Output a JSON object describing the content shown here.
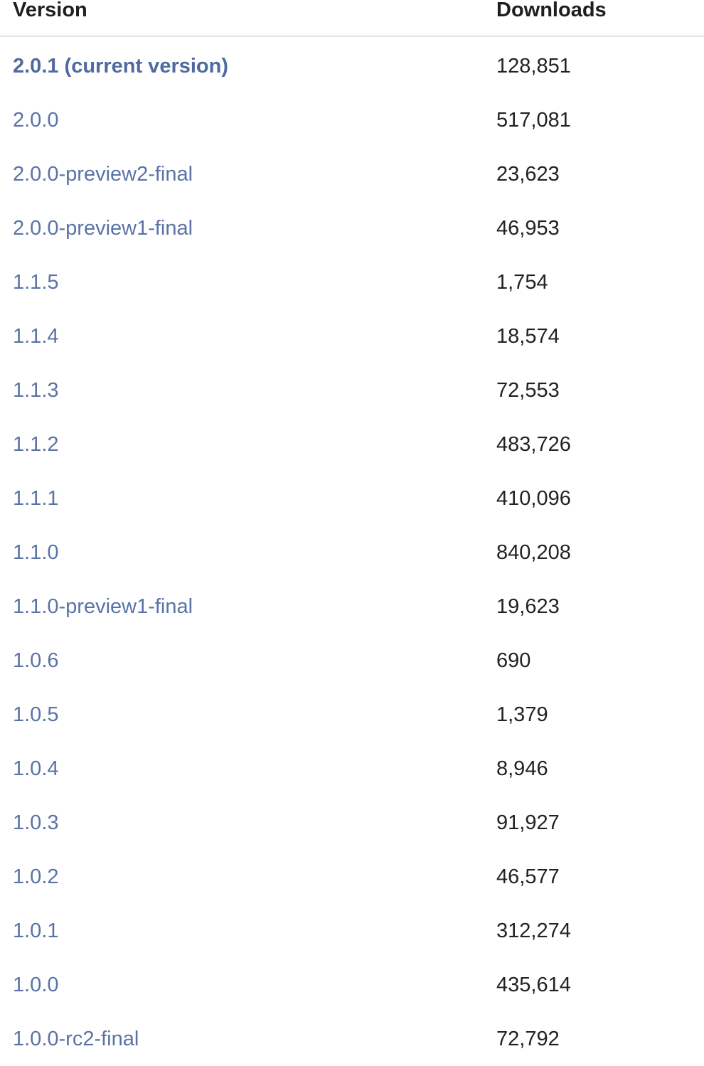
{
  "table": {
    "headers": {
      "version": "Version",
      "downloads": "Downloads"
    },
    "rows": [
      {
        "version": "2.0.1 (current version)",
        "downloads": "128,851",
        "current": true
      },
      {
        "version": "2.0.0",
        "downloads": "517,081"
      },
      {
        "version": "2.0.0-preview2-final",
        "downloads": "23,623"
      },
      {
        "version": "2.0.0-preview1-final",
        "downloads": "46,953"
      },
      {
        "version": "1.1.5",
        "downloads": "1,754"
      },
      {
        "version": "1.1.4",
        "downloads": "18,574"
      },
      {
        "version": "1.1.3",
        "downloads": "72,553"
      },
      {
        "version": "1.1.2",
        "downloads": "483,726"
      },
      {
        "version": "1.1.1",
        "downloads": "410,096"
      },
      {
        "version": "1.1.0",
        "downloads": "840,208"
      },
      {
        "version": "1.1.0-preview1-final",
        "downloads": "19,623"
      },
      {
        "version": "1.0.6",
        "downloads": "690"
      },
      {
        "version": "1.0.5",
        "downloads": "1,379"
      },
      {
        "version": "1.0.4",
        "downloads": "8,946"
      },
      {
        "version": "1.0.3",
        "downloads": "91,927"
      },
      {
        "version": "1.0.2",
        "downloads": "46,577"
      },
      {
        "version": "1.0.1",
        "downloads": "312,274"
      },
      {
        "version": "1.0.0",
        "downloads": "435,614"
      },
      {
        "version": "1.0.0-rc2-final",
        "downloads": "72,792"
      }
    ]
  },
  "colors": {
    "link": "#5a73a6",
    "text": "#222222",
    "header_border": "#e3e3e3"
  }
}
